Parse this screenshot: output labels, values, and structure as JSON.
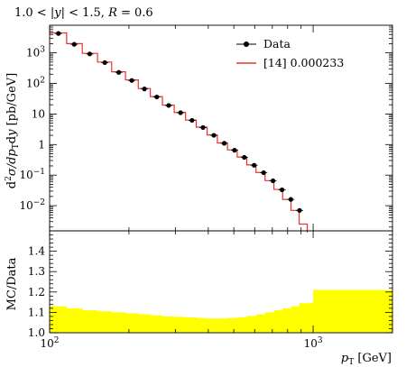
{
  "chart_data": [
    {
      "type": "line",
      "panel": "main",
      "title": "1.0 < |y| < 1.5, R = 0.6",
      "title_parts": {
        "pre": "1.0 < |",
        "y": "y",
        "mid": "| < 1.5, ",
        "r": "R",
        "post": " = 0.6"
      },
      "ylabel": "d²σ/dp_T dy [pb/GeV]",
      "ylabel_parts": {
        "a": "d",
        "sup": "2",
        "b": "σ/d",
        "p": "p",
        "sub": "T",
        "c": "d",
        "y": "y",
        "d": " [pb/GeV]"
      },
      "xscale": "log",
      "yscale": "log",
      "xlim": [
        100,
        2000
      ],
      "ylim": [
        0.0015,
        8000
      ],
      "y_ticks": [
        {
          "value": 0.01,
          "label": "10",
          "exp": "−2"
        },
        {
          "value": 0.1,
          "label": "10",
          "exp": "−1"
        },
        {
          "value": 1,
          "label": "1",
          "exp": ""
        },
        {
          "value": 10,
          "label": "10",
          "exp": ""
        },
        {
          "value": 100,
          "label": "10",
          "exp": "2"
        },
        {
          "value": 1000,
          "label": "10",
          "exp": "3"
        }
      ],
      "legend_position": "top-right",
      "series": [
        {
          "name": "Data",
          "style": "points-with-errors",
          "color": "#000000",
          "x": [
            108,
            124,
            142,
            162,
            183,
            205,
            229,
            255,
            283,
            314,
            347,
            382,
            420,
            460,
            503,
            548,
            597,
            649,
            704,
            762,
            823,
            888
          ],
          "y": [
            4300,
            1900,
            920,
            480,
            230,
            125,
            66,
            36,
            19,
            11,
            6.2,
            3.6,
            2.0,
            1.1,
            0.65,
            0.38,
            0.21,
            0.12,
            0.065,
            0.033,
            0.016,
            0.007
          ]
        },
        {
          "name": "[14] 0.000233",
          "style": "histogram",
          "color": "#e8322e",
          "edges": [
            100,
            116,
            133,
            152,
            172,
            194,
            217,
            241,
            268,
            297,
            328,
            360,
            396,
            433,
            473,
            515,
            560,
            607,
            657,
            710,
            766,
            824,
            885,
            950
          ],
          "y": [
            4500,
            2000,
            960,
            500,
            240,
            130,
            68,
            37,
            19.5,
            11.2,
            6.3,
            3.7,
            2.05,
            1.13,
            0.67,
            0.39,
            0.215,
            0.122,
            0.066,
            0.034,
            0.016,
            0.007,
            0.0025
          ]
        }
      ]
    },
    {
      "type": "area",
      "panel": "ratio",
      "ylabel": "MC/Data",
      "xlabel": "p_T [GeV]",
      "xlabel_parts": {
        "p": "p",
        "sub": "T",
        "rest": " [GeV]"
      },
      "xscale": "log",
      "xlim": [
        100,
        2000
      ],
      "ylim": [
        1.0,
        1.5
      ],
      "x_ticks": [
        {
          "value": 100,
          "label": "10",
          "exp": "2"
        },
        {
          "value": 1000,
          "label": "10",
          "exp": "3"
        }
      ],
      "y_ticks": [
        {
          "value": 1.0,
          "label": "1.0"
        },
        {
          "value": 1.1,
          "label": "1.1"
        },
        {
          "value": 1.2,
          "label": "1.2"
        },
        {
          "value": 1.3,
          "label": "1.3"
        },
        {
          "value": 1.4,
          "label": "1.4"
        }
      ],
      "series": [
        {
          "name": "ratio band",
          "color": "#ffff00",
          "edges": [
            100,
            116,
            133,
            152,
            172,
            194,
            217,
            241,
            268,
            297,
            328,
            360,
            396,
            433,
            473,
            515,
            560,
            607,
            657,
            710,
            766,
            824,
            885,
            1000,
            2000
          ],
          "values": [
            1.13,
            1.12,
            1.11,
            1.105,
            1.1,
            1.095,
            1.09,
            1.085,
            1.08,
            1.078,
            1.075,
            1.072,
            1.07,
            1.07,
            1.072,
            1.076,
            1.082,
            1.09,
            1.1,
            1.11,
            1.12,
            1.13,
            1.145,
            1.21
          ]
        }
      ]
    }
  ]
}
